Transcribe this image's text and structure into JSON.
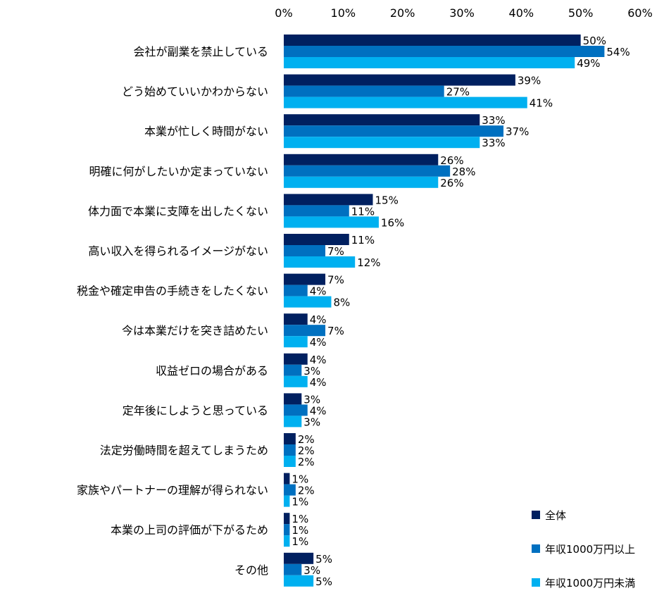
{
  "chart_data": {
    "type": "bar",
    "orientation": "horizontal",
    "title": "",
    "xlabel": "",
    "ylabel": "",
    "xlim": [
      0,
      60
    ],
    "ticks": [
      "0%",
      "10%",
      "20%",
      "30%",
      "40%",
      "50%",
      "60%"
    ],
    "tick_position": "top",
    "unit": "%",
    "grid": false,
    "legend_position": "bottom-right",
    "categories": [
      "会社が副業を禁止している",
      "どう始めていいかわからない",
      "本業が忙しく時間がない",
      "明確に何がしたいか定まっていない",
      "体力面で本業に支障を出したくない",
      "高い収入を得られるイメージがない",
      "税金や確定申告の手続きをしたくない",
      "今は本業だけを突き詰めたい",
      "収益ゼロの場合がある",
      "定年後にしようと思っている",
      "法定労働時間を超えてしまうため",
      "家族やパートナーの理解が得られない",
      "本業の上司の評価が下がるため",
      "その他"
    ],
    "series": [
      {
        "name": "全体",
        "color": "#002060",
        "values": [
          50,
          39,
          33,
          26,
          15,
          11,
          7,
          4,
          4,
          3,
          2,
          1,
          1,
          5
        ]
      },
      {
        "name": "年収1000万円以上",
        "color": "#0070C0",
        "values": [
          54,
          27,
          37,
          28,
          11,
          7,
          4,
          7,
          3,
          4,
          2,
          2,
          1,
          3
        ]
      },
      {
        "name": "年収1000万円未満",
        "color": "#00B0F0",
        "values": [
          49,
          41,
          33,
          26,
          16,
          12,
          8,
          4,
          4,
          3,
          2,
          1,
          1,
          5
        ]
      }
    ]
  }
}
